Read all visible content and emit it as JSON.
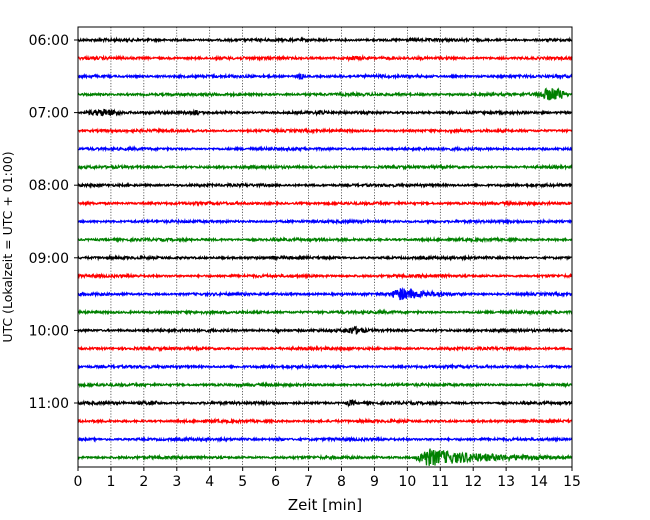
{
  "chart_data": {
    "type": "line",
    "title": "",
    "xlabel": "Zeit  [min]",
    "ylabel": "UTC (Lokalzeit = UTC + 01:00)",
    "xlim": [
      0,
      15
    ],
    "x_ticks": [
      "0",
      "1",
      "2",
      "3",
      "4",
      "5",
      "6",
      "7",
      "8",
      "9",
      "10",
      "11",
      "12",
      "13",
      "14",
      "15"
    ],
    "y_ticks": [
      "06:00",
      "07:00",
      "08:00",
      "09:00",
      "10:00",
      "11:00"
    ],
    "grid_x": true,
    "trace_count": 24,
    "trace_interval_min": 15,
    "trace_colors": [
      "#000000",
      "#ff0000",
      "#0000ff",
      "#008000"
    ],
    "events": [
      {
        "trace": 1,
        "start_min": 8.0,
        "end_min": 8.8,
        "amplitude": 1.2
      },
      {
        "trace": 2,
        "start_min": 6.6,
        "end_min": 6.9,
        "amplitude": 2.2
      },
      {
        "trace": 3,
        "start_min": 13.9,
        "end_min": 14.9,
        "amplitude": 5.5
      },
      {
        "trace": 4,
        "start_min": 0.2,
        "end_min": 1.4,
        "amplitude": 2.8
      },
      {
        "trace": 4,
        "start_min": 3.5,
        "end_min": 3.7,
        "amplitude": 1.5
      },
      {
        "trace": 4,
        "start_min": 7.2,
        "end_min": 7.5,
        "amplitude": 1.4
      },
      {
        "trace": 10,
        "start_min": 10.6,
        "end_min": 10.9,
        "amplitude": 1.2
      },
      {
        "trace": 14,
        "start_min": 9.5,
        "end_min": 11.8,
        "amplitude": 6.0
      },
      {
        "trace": 16,
        "start_min": 5.9,
        "end_min": 6.2,
        "amplitude": 1.3
      },
      {
        "trace": 16,
        "start_min": 8.0,
        "end_min": 8.8,
        "amplitude": 2.6
      },
      {
        "trace": 20,
        "start_min": 1.8,
        "end_min": 2.6,
        "amplitude": 1.5
      },
      {
        "trace": 20,
        "start_min": 8.1,
        "end_min": 8.5,
        "amplitude": 2.0
      },
      {
        "trace": 22,
        "start_min": 6.0,
        "end_min": 6.3,
        "amplitude": 1.2
      },
      {
        "trace": 23,
        "start_min": 10.2,
        "end_min": 15.0,
        "amplitude": 8.5
      }
    ]
  }
}
